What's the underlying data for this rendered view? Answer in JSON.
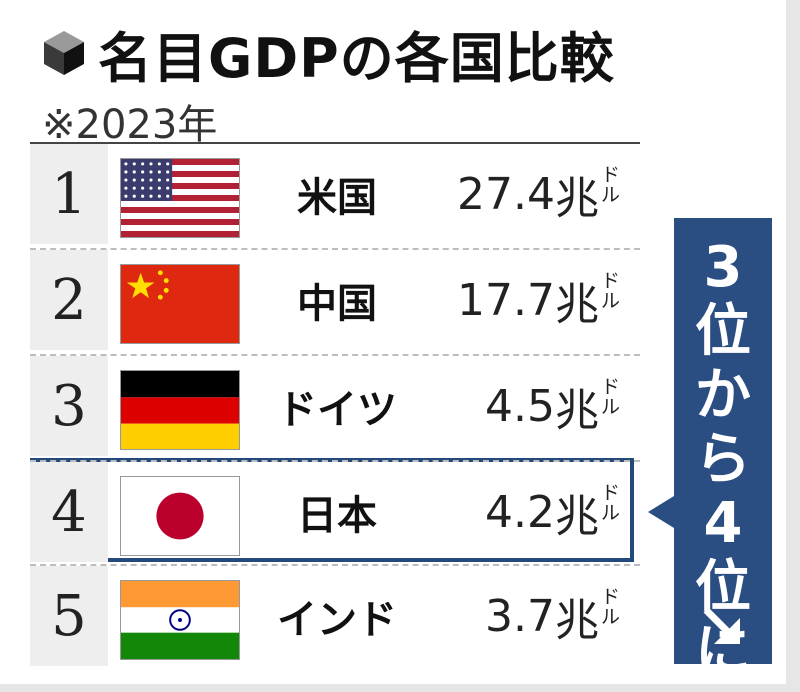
{
  "title": "名目GDPの各国比較",
  "subtitle": "※2023年",
  "callout": {
    "lines": [
      "3",
      "位",
      "か",
      "ら",
      "4",
      "位",
      "に"
    ]
  },
  "chart_data": {
    "type": "table",
    "title": "名目GDPの各国比較",
    "subtitle": "※2023年",
    "unit": "兆ドル",
    "rows": [
      {
        "rank": "1",
        "country": "米国",
        "value_text": "27.4",
        "value": 27.4,
        "flag": "usa-flag"
      },
      {
        "rank": "2",
        "country": "中国",
        "value_text": "17.7",
        "value": 17.7,
        "flag": "china-flag"
      },
      {
        "rank": "3",
        "country": "ドイツ",
        "value_text": "4.5",
        "value": 4.5,
        "flag": "germany-flag"
      },
      {
        "rank": "4",
        "country": "日本",
        "value_text": "4.2",
        "value": 4.2,
        "flag": "japan-flag",
        "highlight": true
      },
      {
        "rank": "5",
        "country": "インド",
        "value_text": "3.7",
        "value": 3.7,
        "flag": "india-flag"
      }
    ],
    "unit_main": "兆",
    "unit_sup": [
      "ド",
      "ル"
    ]
  },
  "colors": {
    "highlight_border": "#234a7a",
    "callout_bg": "#2b4e82"
  }
}
